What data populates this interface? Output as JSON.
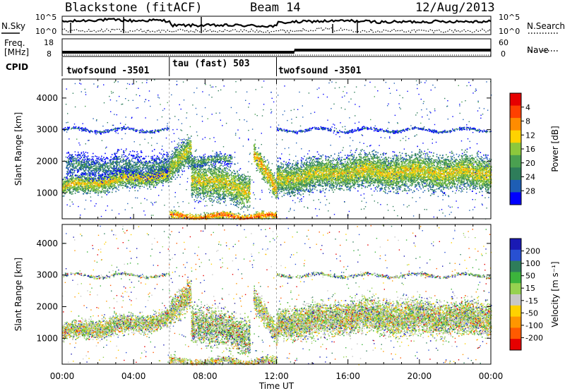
{
  "header": {
    "station": "Blackstone (fitACF)",
    "beam": "Beam 14",
    "date": "12/Aug/2013"
  },
  "side_labels": {
    "n_sky": "N.Sky",
    "n_search": "N.Search",
    "freq_line1": "Freq.",
    "freq_line2": "[MHz]",
    "cpid": "CPID",
    "nave": "Nave"
  },
  "chart_data": [
    {
      "type": "line",
      "panel": "noise",
      "ylabel_left": "N.Sky",
      "ylabel_right": "N.Search",
      "y_ticks": [
        "10^5",
        "10^0"
      ],
      "series": [
        {
          "name": "N.Sky",
          "style": "solid thick",
          "x_hours": [
            0,
            1,
            2,
            3,
            4,
            5,
            6,
            6.1,
            8,
            10,
            12,
            12.1,
            14,
            16,
            18,
            20,
            22,
            24
          ],
          "y_norm": [
            0.7,
            0.75,
            0.8,
            0.8,
            0.75,
            0.78,
            0.75,
            0.5,
            0.5,
            0.5,
            0.45,
            0.65,
            0.72,
            0.75,
            0.68,
            0.7,
            0.72,
            0.72
          ]
        },
        {
          "name": "N.Search",
          "style": "dotted",
          "x_hours": [
            0,
            1,
            2,
            3,
            4,
            5,
            6,
            12,
            13,
            14,
            16,
            18,
            20,
            24
          ],
          "y_norm": [
            0.25,
            0.2,
            0.2,
            0.25,
            0.2,
            0.2,
            0.2,
            0.2,
            0.2,
            0.3,
            0.25,
            0.2,
            0.2,
            0.2
          ]
        }
      ]
    },
    {
      "type": "line",
      "panel": "frequency",
      "ylabel_left": "Freq. [MHz]",
      "ylabel_right": "Nave",
      "y_ticks_left": [
        "18",
        "8"
      ],
      "y_ticks_right": [
        "60",
        "0"
      ],
      "freq_segments": [
        {
          "start": 0,
          "end": 13,
          "value": 10.4
        },
        {
          "start": 13,
          "end": 24,
          "value": 11.6
        }
      ]
    },
    {
      "type": "table",
      "panel": "cpid",
      "segments": [
        {
          "start": 0,
          "end": 6,
          "label": "twofsound -3501"
        },
        {
          "start": 6,
          "end": 12,
          "label": "tau (fast) 503"
        },
        {
          "start": 12,
          "end": 24,
          "label": "twofsound -3501"
        }
      ]
    },
    {
      "type": "heatmap",
      "panel": "power",
      "ylabel": "Slant Range [km]",
      "yticks": [
        1000,
        2000,
        3000,
        4000
      ],
      "ylim": [
        180,
        4600
      ],
      "xlim": [
        0,
        24
      ],
      "colorbar": {
        "label": "Power [dB]",
        "ticks": [
          4,
          8,
          12,
          16,
          20,
          24,
          28
        ],
        "colors": [
          "#0000ff",
          "#1e5eb4",
          "#2e7d5a",
          "#4aa050",
          "#8cc83c",
          "#ffd200",
          "#ff8c00",
          "#ff4000",
          "#e60000"
        ]
      },
      "bands": [
        {
          "t0": 0.0,
          "t1": 6.0,
          "r0": 1200,
          "r1": 1620,
          "w": 280,
          "density": 0.95,
          "level": 0.62
        },
        {
          "t0": 0.2,
          "t1": 6.0,
          "r0": 1850,
          "r1": 1900,
          "w": 380,
          "density": 0.45,
          "level": 0.32
        },
        {
          "t0": 6.0,
          "t1": 7.2,
          "r0": 1700,
          "r1": 2500,
          "w": 420,
          "density": 0.9,
          "level": 0.58
        },
        {
          "t0": 7.2,
          "t1": 10.5,
          "r0": 1500,
          "r1": 1100,
          "w": 550,
          "density": 0.75,
          "level": 0.6
        },
        {
          "t0": 7.0,
          "t1": 9.5,
          "r0": 2050,
          "r1": 2050,
          "w": 180,
          "density": 0.55,
          "level": 0.42
        },
        {
          "t0": 10.7,
          "t1": 12.0,
          "r0": 2300,
          "r1": 1050,
          "w": 350,
          "density": 0.85,
          "level": 0.68
        },
        {
          "t0": 12.0,
          "t1": 16.0,
          "r0": 1450,
          "r1": 1700,
          "w": 480,
          "density": 0.9,
          "level": 0.58
        },
        {
          "t0": 16.0,
          "t1": 24.0,
          "r0": 1700,
          "r1": 1650,
          "w": 520,
          "density": 0.85,
          "level": 0.6
        },
        {
          "t0": 0.0,
          "t1": 6.0,
          "r0": 3000,
          "r1": 3000,
          "w": 50,
          "density": 0.6,
          "level": 0.25
        },
        {
          "t0": 12.0,
          "t1": 24.0,
          "r0": 3000,
          "r1": 3000,
          "w": 50,
          "density": 0.6,
          "level": 0.25
        },
        {
          "t0": 6.0,
          "t1": 12.0,
          "r0": 270,
          "r1": 270,
          "w": 120,
          "density": 0.8,
          "level": 0.82
        }
      ]
    },
    {
      "type": "heatmap",
      "panel": "velocity",
      "ylabel": "Slant Range [km]",
      "yticks": [
        1000,
        2000,
        3000,
        4000
      ],
      "ylim": [
        180,
        4600
      ],
      "xlim": [
        0,
        24
      ],
      "xticks": [
        "00:00",
        "04:00",
        "08:00",
        "12:00",
        "16:00",
        "20:00",
        "00:00"
      ],
      "xlabel": "Time UT",
      "colorbar": {
        "label": "Velocity [m s⁻¹]",
        "ticks": [
          200,
          100,
          50,
          15,
          -15,
          -50,
          -100,
          -200
        ],
        "colors": [
          "#1a1ab4",
          "#2850d2",
          "#2e7d5a",
          "#3cb43c",
          "#96d250",
          "#c8c8c8",
          "#ffd200",
          "#ff9600",
          "#ff5a00",
          "#e60000"
        ]
      },
      "bands": [
        {
          "t0": 0.0,
          "t1": 6.0,
          "r0": 1200,
          "r1": 1620,
          "w": 280,
          "density": 0.95,
          "level": 0.5
        },
        {
          "t0": 6.0,
          "t1": 7.2,
          "r0": 1700,
          "r1": 2500,
          "w": 420,
          "density": 0.9,
          "level": 0.55
        },
        {
          "t0": 7.2,
          "t1": 10.5,
          "r0": 1500,
          "r1": 1100,
          "w": 550,
          "density": 0.75,
          "level": 0.38
        },
        {
          "t0": 10.7,
          "t1": 12.0,
          "r0": 2300,
          "r1": 1050,
          "w": 350,
          "density": 0.85,
          "level": 0.5
        },
        {
          "t0": 12.0,
          "t1": 16.0,
          "r0": 1450,
          "r1": 1700,
          "w": 480,
          "density": 0.9,
          "level": 0.5
        },
        {
          "t0": 16.0,
          "t1": 24.0,
          "r0": 1700,
          "r1": 1650,
          "w": 520,
          "density": 0.85,
          "level": 0.5
        },
        {
          "t0": 0.0,
          "t1": 6.0,
          "r0": 3000,
          "r1": 3000,
          "w": 50,
          "density": 0.6,
          "level": 0.15
        },
        {
          "t0": 12.0,
          "t1": 24.0,
          "r0": 3000,
          "r1": 3000,
          "w": 50,
          "density": 0.6,
          "level": 0.15
        },
        {
          "t0": 6.0,
          "t1": 12.0,
          "r0": 270,
          "r1": 270,
          "w": 120,
          "density": 0.8,
          "level": 0.6
        }
      ]
    }
  ]
}
